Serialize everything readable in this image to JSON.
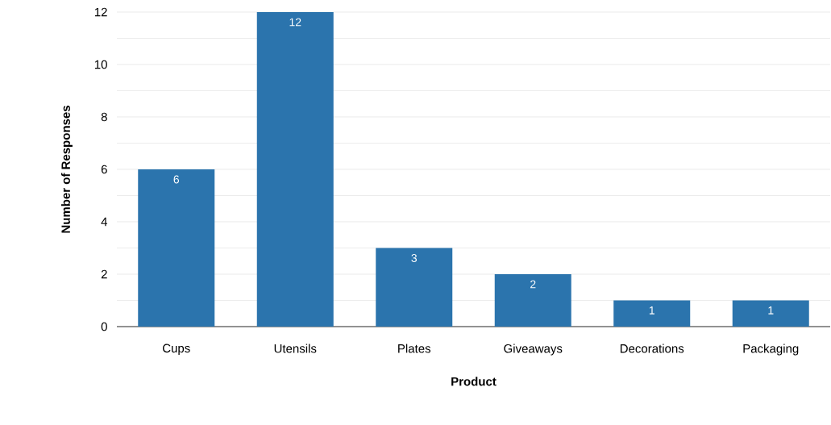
{
  "chart_data": {
    "type": "bar",
    "xlabel": "Product",
    "ylabel": "Number of Responses",
    "categories": [
      "Cups",
      "Utensils",
      "Plates",
      "Giveaways",
      "Decorations",
      "Packaging"
    ],
    "values": [
      6,
      12,
      3,
      2,
      1,
      1
    ],
    "color": "#2b74ad",
    "data_labels": true,
    "ylim": [
      0,
      12
    ],
    "yticks": [
      0,
      {
        "value": 1,
        "label": null
      },
      2,
      {
        "value": 3,
        "label": null
      },
      4,
      {
        "value": 5,
        "label": null
      },
      6,
      {
        "value": 7,
        "label": null
      },
      8,
      {
        "value": 9,
        "label": null
      },
      10,
      {
        "value": 11,
        "label": null
      },
      12
    ],
    "grid": "y"
  }
}
